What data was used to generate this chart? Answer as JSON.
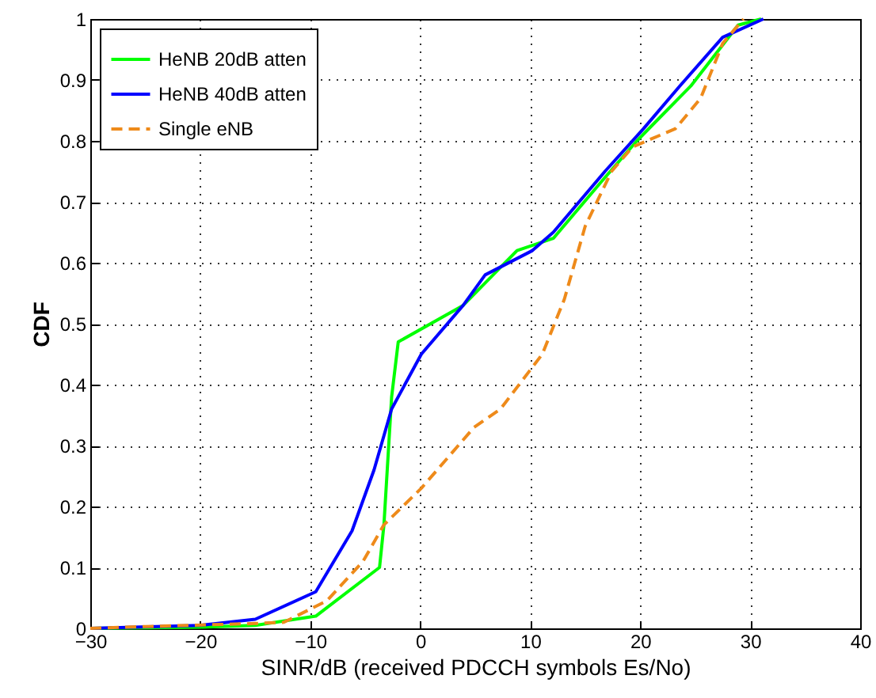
{
  "chart_data": {
    "type": "line",
    "xlabel": "SINR/dB (received PDCCH symbols Es/No)",
    "ylabel": "CDF",
    "xlim": [
      -30,
      40
    ],
    "xticks": [
      -30,
      -20,
      -10,
      0,
      10,
      20,
      30,
      40
    ],
    "ylim": [
      0,
      1
    ],
    "yticks": [
      0,
      0.1,
      0.2,
      0.3,
      0.4,
      0.5,
      0.6,
      0.7,
      0.8,
      0.9,
      1
    ],
    "grid": true,
    "legend": "top left",
    "series": [
      {
        "name": "HeNB 20dB atten",
        "color": "#00ff00",
        "line_style": "solid",
        "x": [
          -30,
          -20,
          -15,
          -9.5,
          -3.7,
          -3.3,
          -2.6,
          -2.0,
          3.9,
          8.8,
          12.1,
          16.8,
          19.7,
          24.6,
          28.9,
          31
        ],
        "values": [
          0,
          0.002,
          0.005,
          0.02,
          0.1,
          0.17,
          0.38,
          0.47,
          0.53,
          0.62,
          0.64,
          0.74,
          0.8,
          0.89,
          0.99,
          1
        ]
      },
      {
        "name": "HeNB 40dB atten",
        "color": "#0000ff",
        "line_style": "solid",
        "x": [
          -30,
          -20,
          -15,
          -9.5,
          -6.2,
          -4.2,
          -2.6,
          0.1,
          3.9,
          5.9,
          10.2,
          12.1,
          16.8,
          20.3,
          23.6,
          27.5,
          31.2
        ],
        "values": [
          0,
          0.005,
          0.015,
          0.06,
          0.16,
          0.26,
          0.36,
          0.45,
          0.53,
          0.58,
          0.62,
          0.65,
          0.75,
          0.82,
          0.89,
          0.97,
          1
        ]
      },
      {
        "name": "Single eNB",
        "color": "#ee8a1a",
        "line_style": "dashed",
        "x": [
          -30,
          -25,
          -15,
          -12.4,
          -8.5,
          -5.2,
          -3.3,
          0.1,
          4.9,
          7.3,
          11.1,
          13.1,
          15,
          17.4,
          19.3,
          23.2,
          25.5,
          27.5,
          29.4
        ],
        "values": [
          0,
          0.003,
          0.008,
          0.01,
          0.045,
          0.11,
          0.17,
          0.23,
          0.33,
          0.36,
          0.45,
          0.54,
          0.66,
          0.75,
          0.79,
          0.82,
          0.87,
          0.96,
          1
        ]
      }
    ]
  }
}
